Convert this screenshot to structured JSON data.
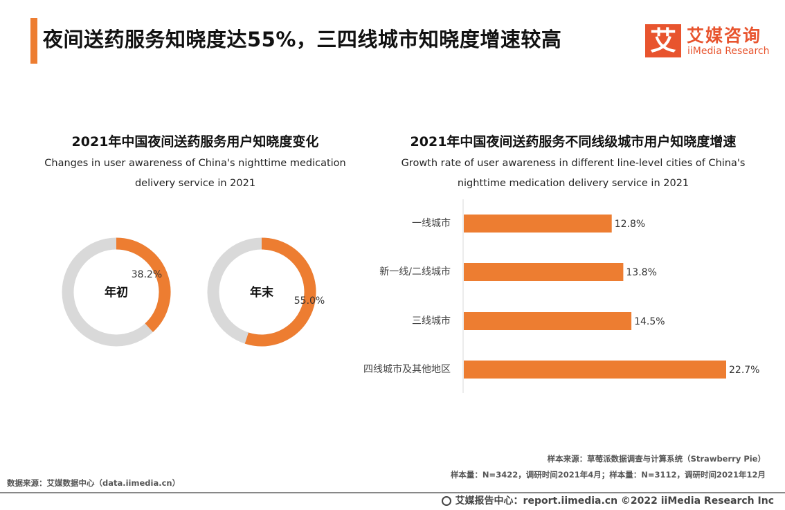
{
  "header": {
    "title": "夜间送药服务知晓度达55%，三四线城市知晓度增速较高"
  },
  "logo": {
    "mark": "艾",
    "name_cn": "艾媒咨询",
    "name_en": "iiMedia Research"
  },
  "left_section": {
    "title": "2021年中国夜间送药服务用户知晓度变化",
    "subtitle_line1": "Changes in user awareness of China's nighttime medication",
    "subtitle_line2": "delivery service in 2021"
  },
  "right_section": {
    "title": "2021年中国夜间送药服务不同线级城市用户知晓度增速",
    "subtitle_line1": "Growth rate of user awareness in different line-level cities of China's",
    "subtitle_line2": "nighttime medication delivery service in 2021"
  },
  "colors": {
    "accent": "#ED7D31",
    "track": "#D9D9D9",
    "brand": "#E8542E"
  },
  "chart_data": [
    {
      "type": "pie",
      "variant": "donut",
      "center_label": "年初",
      "value": 38.2,
      "value_label": "38.2%",
      "max": 100
    },
    {
      "type": "pie",
      "variant": "donut",
      "center_label": "年末",
      "value": 55.0,
      "value_label": "55.0%",
      "max": 100
    },
    {
      "type": "bar",
      "orientation": "horizontal",
      "categories": [
        "一线城市",
        "新一线/二线城市",
        "三线城市",
        "四线城市及其他地区"
      ],
      "values": [
        12.8,
        13.8,
        14.5,
        22.7
      ],
      "value_labels": [
        "12.8%",
        "13.8%",
        "14.5%",
        "22.7%"
      ],
      "xlim": [
        0,
        25
      ]
    }
  ],
  "notes": {
    "sample_source": "样本来源：草莓派数据调查与计算系统（Strawberry Pie）",
    "sample_size": "样本量：N=3422，调研时间2021年4月；样本量：N=3112，调研时间2021年12月",
    "data_source": "数据来源：艾媒数据中心（data.iimedia.cn）"
  },
  "footer": {
    "text": "艾媒报告中心：report.iimedia.cn   ©2022  iiMedia Research Inc"
  }
}
